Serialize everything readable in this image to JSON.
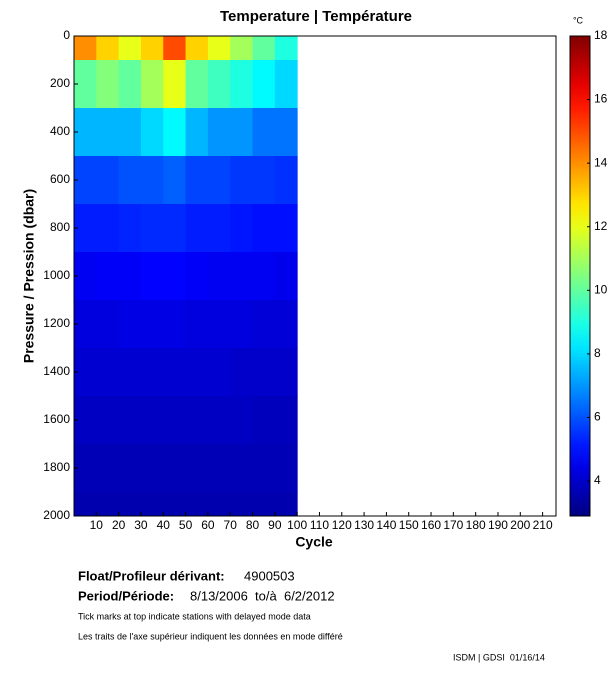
{
  "chart_data": {
    "type": "heatmap",
    "title": "Temperature | Température",
    "xlabel": "Cycle",
    "ylabel": "Pressure / Pression (dbar)",
    "colorbar_label": "°C",
    "xlim": [
      0,
      216
    ],
    "xticks": [
      10,
      20,
      30,
      40,
      50,
      60,
      70,
      80,
      90,
      100,
      110,
      120,
      130,
      140,
      150,
      160,
      170,
      180,
      190,
      200,
      210
    ],
    "ylim": [
      2000,
      0
    ],
    "yticks": [
      0,
      200,
      400,
      600,
      800,
      1000,
      1200,
      1400,
      1600,
      1800,
      2000
    ],
    "clim": [
      2.9,
      18
    ],
    "cticks": [
      4,
      6,
      8,
      10,
      12,
      14,
      16,
      18
    ],
    "colormap": "jet",
    "x": [
      5,
      15,
      25,
      35,
      45,
      55,
      65,
      75,
      85,
      95
    ],
    "y": [
      0,
      200,
      400,
      600,
      800,
      1000,
      1200,
      1400,
      1600,
      1800,
      2000
    ],
    "z": [
      [
        14,
        13,
        12,
        13,
        15,
        13,
        12,
        11,
        10,
        9
      ],
      [
        10,
        10.5,
        10,
        11,
        12,
        10,
        9.5,
        9,
        8.5,
        8
      ],
      [
        7.5,
        7.5,
        7.5,
        8,
        8.5,
        7.5,
        7,
        7,
        6.5,
        6.5
      ],
      [
        5.8,
        5.8,
        6,
        6,
        6.2,
        5.8,
        5.8,
        5.6,
        5.6,
        5.5
      ],
      [
        5.2,
        5.2,
        5.3,
        5.4,
        5.4,
        5.2,
        5.2,
        5.1,
        5,
        5
      ],
      [
        4.6,
        4.7,
        4.7,
        4.8,
        4.8,
        4.7,
        4.6,
        4.6,
        4.6,
        4.5
      ],
      [
        4.3,
        4.3,
        4.4,
        4.4,
        4.4,
        4.3,
        4.3,
        4.3,
        4.2,
        4.2
      ],
      [
        4.1,
        4.1,
        4.1,
        4.1,
        4.1,
        4.1,
        4.1,
        4,
        4,
        4
      ],
      [
        3.9,
        3.9,
        3.9,
        3.9,
        3.9,
        3.9,
        3.9,
        3.9,
        3.8,
        3.8
      ],
      [
        3.7,
        3.7,
        3.7,
        3.7,
        3.7,
        3.7,
        3.7,
        3.7,
        3.7,
        3.7
      ],
      [
        3.6,
        3.6,
        3.6,
        3.6,
        3.6,
        3.6,
        3.6,
        3.6,
        3.6,
        3.6
      ]
    ]
  },
  "footer": {
    "float_label": "Float/Profileur dérivant:",
    "float_id": "4900503",
    "period_label": "Period/Période:",
    "period": "8/13/2006  to/à  6/2/2012",
    "note_en": "Tick marks at top indicate stations with delayed mode data",
    "note_fr": "Les traits de l'axe supérieur indiquent les données en mode différé",
    "credit": "ISDM | GDSI  01/16/14"
  }
}
